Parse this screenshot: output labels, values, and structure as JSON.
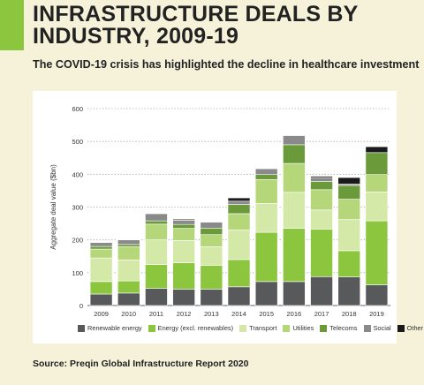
{
  "header": {
    "title_line1": "INFRASTRUCTURE DEALS BY",
    "title_line2": "INDUSTRY, 2009-19",
    "subtitle": "The COVID-19 crisis has highlighted the decline in healthcare investment",
    "accent_color": "#8cc63f"
  },
  "footer": {
    "source": "Source: Preqin Global Infrastructure Report 2020"
  },
  "chart_data": {
    "type": "bar",
    "stacked": true,
    "categories": [
      "2009",
      "2010",
      "2011",
      "2012",
      "2013",
      "2014",
      "2015",
      "2016",
      "2017",
      "2018",
      "2019"
    ],
    "ylabel": "Aggregate deal value ($bn)",
    "ylim": [
      0,
      600
    ],
    "yticks": [
      "0",
      "100",
      "200",
      "300",
      "400",
      "500",
      "600"
    ],
    "grid": "dotted horizontal",
    "legend_position": "bottom",
    "series": [
      {
        "name": "Renewable energy",
        "color": "#58595b",
        "values": [
          35,
          38,
          52,
          50,
          50,
          57,
          73,
          73,
          88,
          87,
          63
        ]
      },
      {
        "name": "Energy (excl. renewables)",
        "color": "#8cc63f",
        "values": [
          38,
          37,
          73,
          80,
          72,
          83,
          150,
          162,
          145,
          80,
          195
        ]
      },
      {
        "name": "Transport",
        "color": "#d4e8a8",
        "values": [
          72,
          64,
          75,
          68,
          57,
          90,
          88,
          110,
          58,
          95,
          88
        ]
      },
      {
        "name": "Utilities",
        "color": "#b5d77a",
        "values": [
          27,
          40,
          48,
          37,
          37,
          50,
          73,
          88,
          62,
          62,
          53
        ]
      },
      {
        "name": "Telecoms",
        "color": "#6a9a3a",
        "values": [
          8,
          7,
          10,
          12,
          20,
          28,
          15,
          57,
          25,
          42,
          67
        ]
      },
      {
        "name": "Social",
        "color": "#8a8a8a",
        "values": [
          12,
          14,
          22,
          13,
          18,
          10,
          18,
          28,
          12,
          4,
          0
        ]
      },
      {
        "name": "Other",
        "color": "#1a1a1a",
        "values": [
          1,
          1,
          1,
          3,
          1,
          10,
          1,
          1,
          4,
          20,
          18
        ]
      }
    ]
  }
}
